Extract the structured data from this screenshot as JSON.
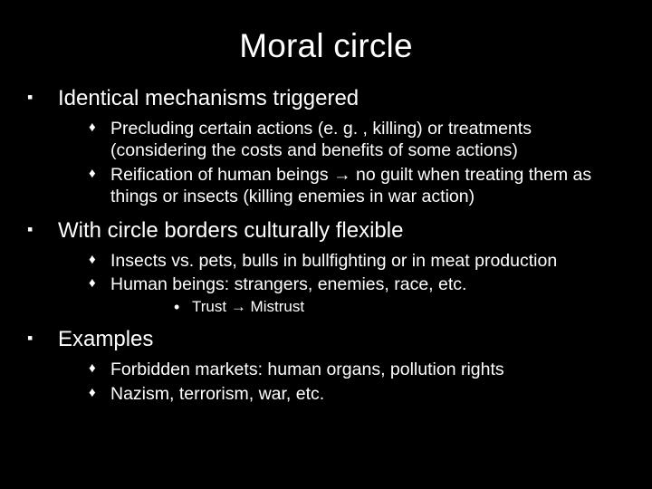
{
  "slide": {
    "title": "Moral circle",
    "background_color": "#000000",
    "text_color": "#ffffff",
    "title_fontsize": 37,
    "level1_fontsize": 24,
    "level2_fontsize": 19.5,
    "level3_fontsize": 17,
    "bullet_level1": "▪",
    "bullet_level2": "♦",
    "bullet_level3": "•",
    "items": [
      {
        "text": "Identical mechanisms triggered",
        "subs": [
          {
            "text": "Precluding certain actions (e. g. , killing) or treatments (considering the costs and benefits of some actions)"
          },
          {
            "text": "Reification of human beings → no guilt when treating them as things or insects (killing enemies in war action)"
          }
        ]
      },
      {
        "text": "With circle borders culturally flexible",
        "subs": [
          {
            "text": "Insects vs. pets, bulls in bullfighting or in meat production"
          },
          {
            "text": "Human beings: strangers, enemies, race, etc.",
            "subsubs": [
              {
                "text": "Trust → Mistrust"
              }
            ]
          }
        ]
      },
      {
        "text": "Examples",
        "subs": [
          {
            "text": "Forbidden markets: human organs, pollution rights"
          },
          {
            "text": "Nazism, terrorism, war, etc."
          }
        ]
      }
    ]
  }
}
